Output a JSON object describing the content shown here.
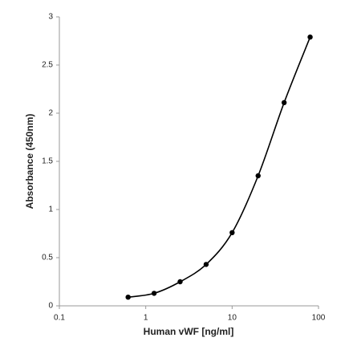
{
  "chart_data": {
    "type": "line",
    "x_label": "Human vWF [ng/ml]",
    "y_label": "Absorbance (450nm)",
    "x": [
      0.625,
      1.25,
      2.5,
      5,
      10,
      20,
      40,
      80
    ],
    "series": [
      {
        "color": "#000000",
        "values": [
          0.09,
          0.13,
          0.25,
          0.43,
          0.76,
          1.35,
          2.11,
          2.79
        ]
      }
    ],
    "xlim": [
      0.1,
      100
    ],
    "xticks": [
      0.1,
      1,
      10,
      100
    ],
    "xlog": true,
    "ylim": [
      0,
      3
    ],
    "yticks": [
      0,
      0.5,
      1,
      1.5,
      2,
      2.5,
      3
    ],
    "grid": false
  }
}
